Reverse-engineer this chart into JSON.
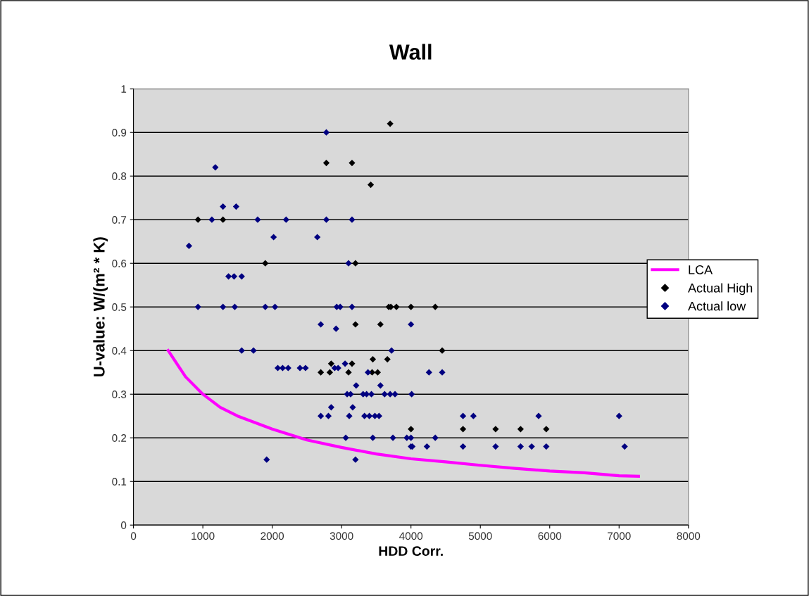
{
  "chart_data": {
    "type": "scatter",
    "title": "Wall",
    "xlabel": "HDD Corr.",
    "ylabel": "U-value: W/(m² * K)",
    "xlim": [
      0,
      8000
    ],
    "xticks": [
      0,
      1000,
      2000,
      3000,
      4000,
      5000,
      6000,
      7000,
      8000
    ],
    "ylim": [
      0,
      1
    ],
    "yticks": [
      0,
      0.1,
      0.2,
      0.3,
      0.4,
      0.5,
      0.6,
      0.7,
      0.8,
      0.9,
      1
    ],
    "grid": "y",
    "legend": "right",
    "series": [
      {
        "name": "LCA",
        "type": "line",
        "color": "#ff00ff",
        "marker": "none",
        "line_style": "solid",
        "x": [
          500,
          750,
          1000,
          1250,
          1500,
          2000,
          2500,
          3000,
          3500,
          4000,
          4500,
          5000,
          5500,
          6000,
          6500,
          7000,
          7280
        ],
        "values": [
          0.4,
          0.34,
          0.3,
          0.27,
          0.25,
          0.22,
          0.195,
          0.178,
          0.163,
          0.152,
          0.145,
          0.137,
          0.13,
          0.124,
          0.12,
          0.113,
          0.112
        ]
      },
      {
        "name": "Actual High",
        "color": "#000000",
        "marker": "diamond",
        "x": [
          930,
          1290,
          1900,
          2780,
          3150,
          3700,
          3420,
          3200,
          3200,
          3560,
          3680,
          3710,
          3790,
          4000,
          4350,
          4450,
          3660,
          3450,
          2850,
          2700,
          2830,
          3100,
          3150,
          3440,
          3520,
          4000,
          4750,
          5220,
          5580,
          5950
        ],
        "values": [
          0.7,
          0.7,
          0.6,
          0.83,
          0.83,
          0.92,
          0.78,
          0.6,
          0.46,
          0.46,
          0.5,
          0.5,
          0.5,
          0.5,
          0.5,
          0.4,
          0.38,
          0.38,
          0.37,
          0.35,
          0.35,
          0.35,
          0.37,
          0.35,
          0.35,
          0.22,
          0.22,
          0.22,
          0.22,
          0.22
        ]
      },
      {
        "name": "Actual low",
        "color": "#000080",
        "marker": "diamond",
        "x": [
          800,
          930,
          1130,
          1180,
          1290,
          1290,
          1370,
          1450,
          1560,
          1480,
          1460,
          1560,
          1730,
          1790,
          1900,
          2020,
          2040,
          2200,
          2080,
          2150,
          2230,
          2400,
          2480,
          1920,
          2650,
          2700,
          2780,
          2780,
          2700,
          2810,
          2850,
          2900,
          2950,
          2920,
          2930,
          2980,
          3050,
          3080,
          3130,
          3100,
          3150,
          3150,
          3060,
          3110,
          3160,
          3200,
          3210,
          3310,
          3360,
          3330,
          3400,
          3380,
          3430,
          3450,
          3480,
          3540,
          3560,
          3620,
          3700,
          3770,
          3720,
          3740,
          3940,
          4000,
          4000,
          4020,
          4000,
          4010,
          4230,
          4260,
          4350,
          4450,
          4750,
          4900,
          4750,
          5220,
          5580,
          5740,
          5840,
          5950,
          7000,
          7080
        ],
        "values": [
          0.64,
          0.5,
          0.7,
          0.82,
          0.73,
          0.5,
          0.57,
          0.57,
          0.57,
          0.73,
          0.5,
          0.4,
          0.4,
          0.7,
          0.5,
          0.66,
          0.5,
          0.7,
          0.36,
          0.36,
          0.36,
          0.36,
          0.36,
          0.15,
          0.66,
          0.46,
          0.7,
          0.9,
          0.25,
          0.25,
          0.27,
          0.36,
          0.36,
          0.45,
          0.5,
          0.5,
          0.37,
          0.3,
          0.3,
          0.6,
          0.7,
          0.5,
          0.2,
          0.25,
          0.27,
          0.15,
          0.32,
          0.3,
          0.3,
          0.25,
          0.25,
          0.35,
          0.3,
          0.2,
          0.25,
          0.25,
          0.32,
          0.3,
          0.3,
          0.3,
          0.4,
          0.2,
          0.2,
          0.2,
          0.18,
          0.18,
          0.46,
          0.3,
          0.18,
          0.35,
          0.2,
          0.35,
          0.25,
          0.25,
          0.18,
          0.18,
          0.18,
          0.18,
          0.25,
          0.18,
          0.25,
          0.18
        ]
      }
    ]
  }
}
